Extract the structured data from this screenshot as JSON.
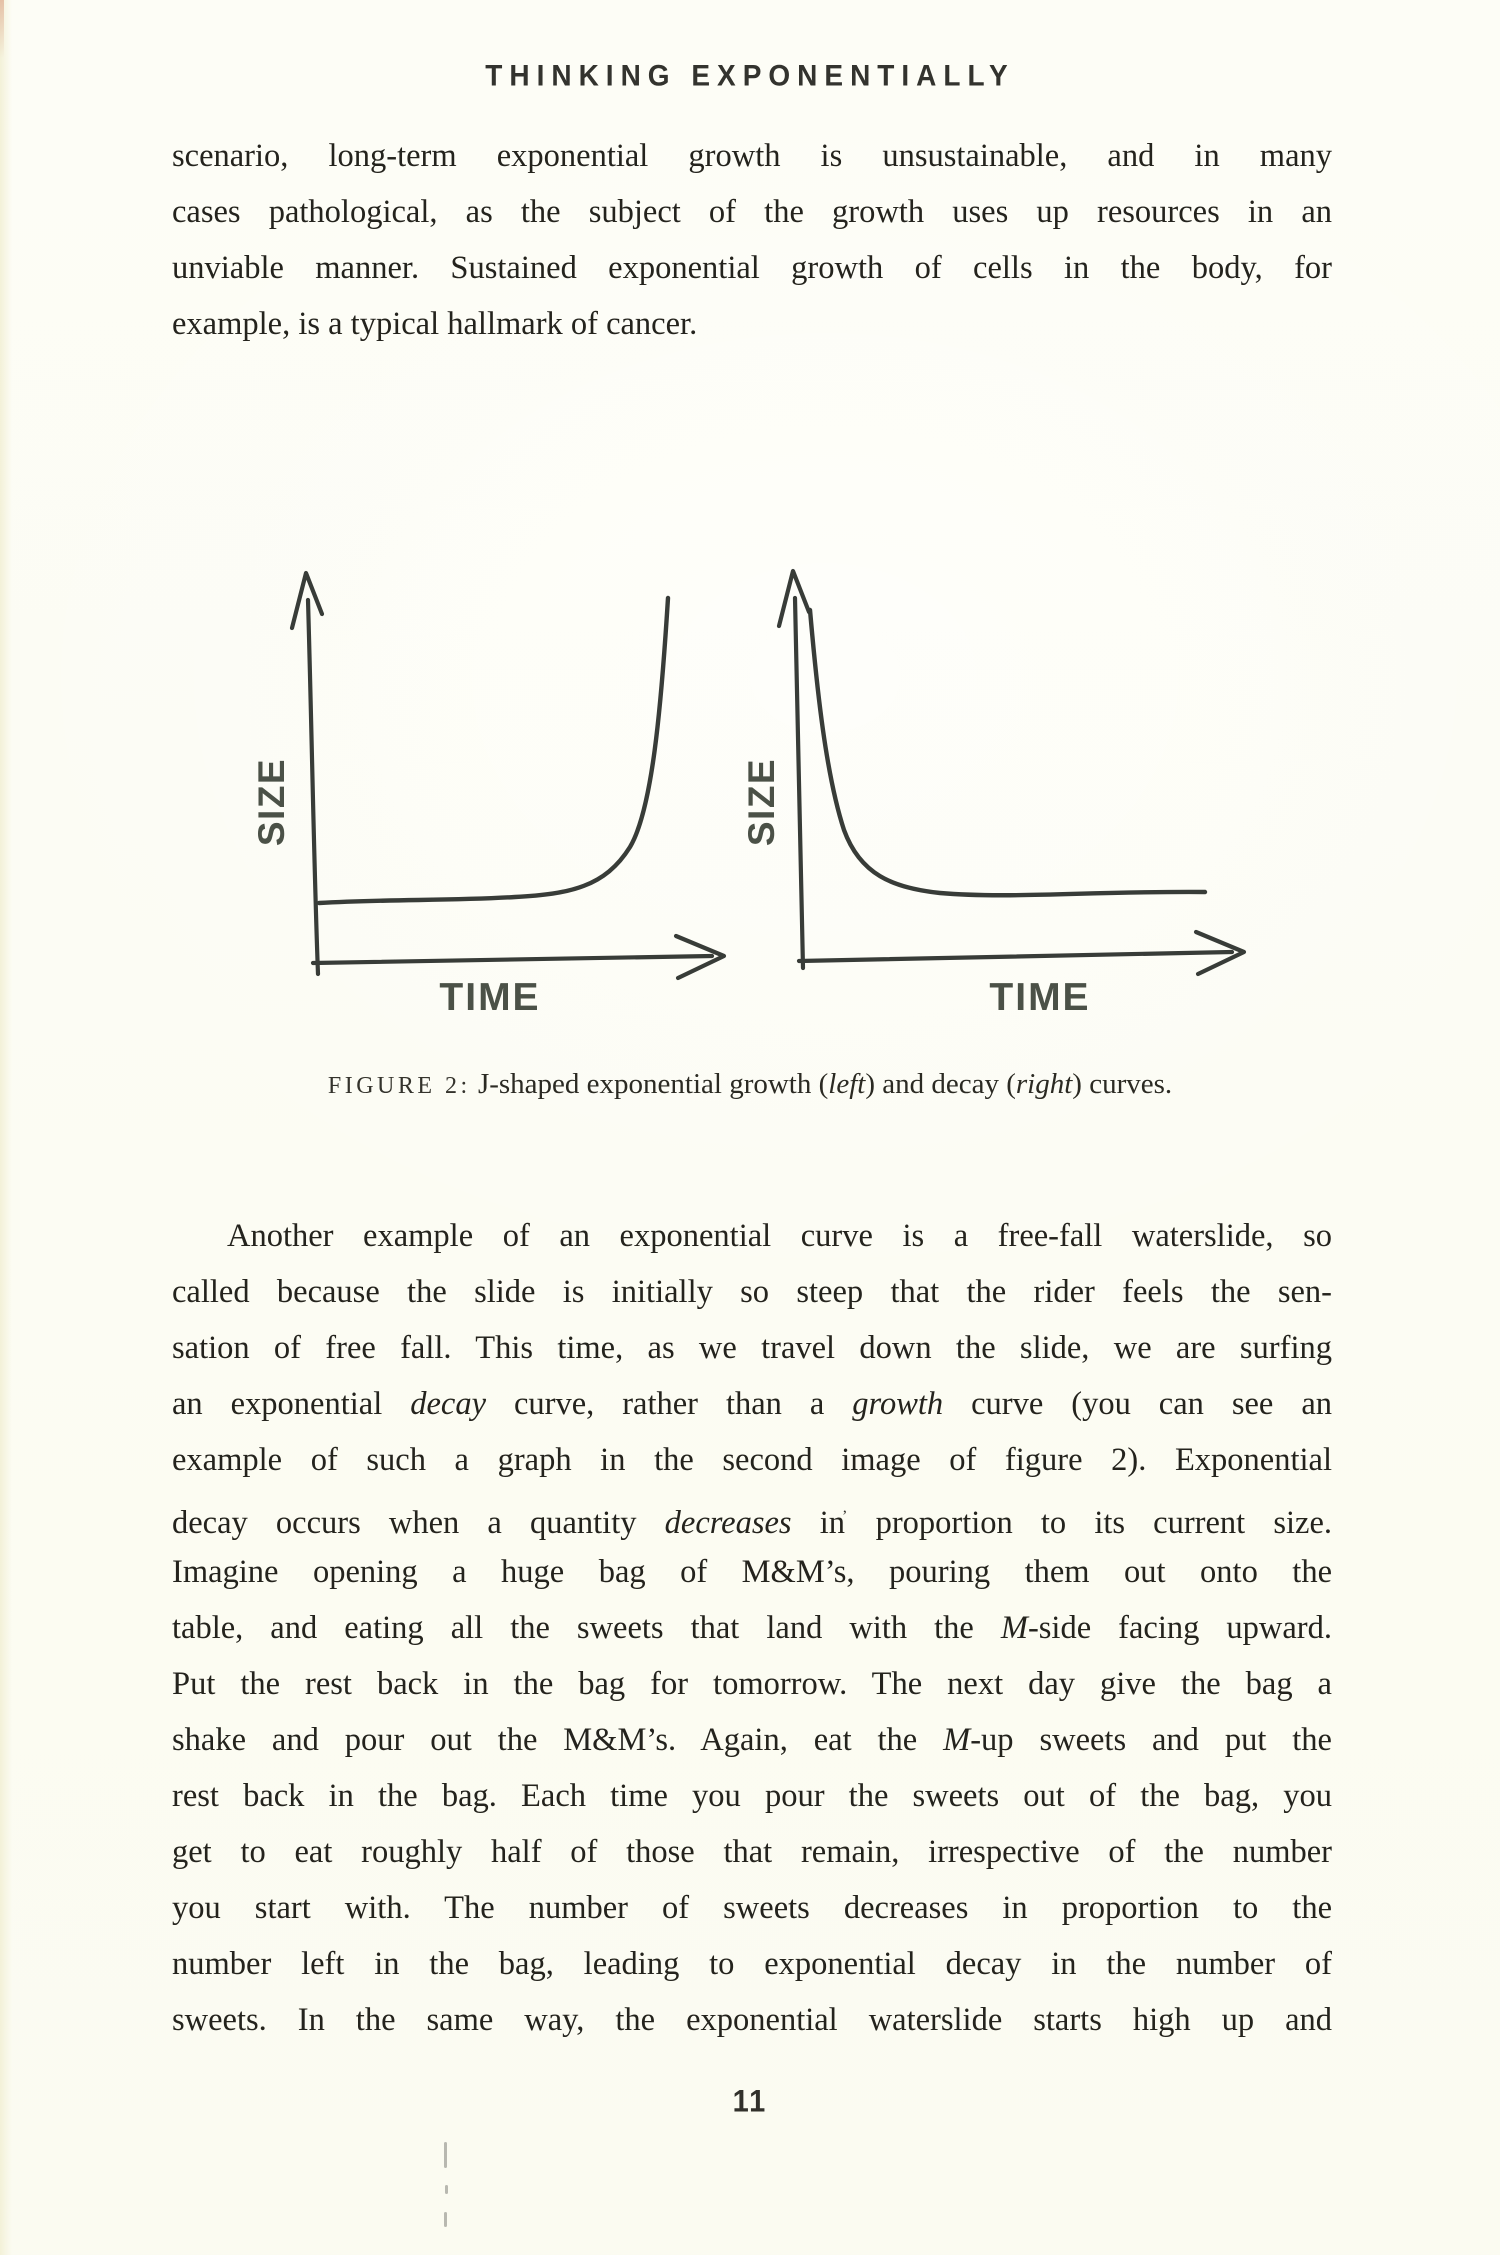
{
  "header": {
    "title": "THINKING EXPONENTIALLY"
  },
  "paragraph1": {
    "lines": [
      {
        "text": "scenario, long-term exponential growth is unsustainable, and in many",
        "justify": true
      },
      {
        "text": "cases pathological, as the subject of the growth uses up resources in an",
        "justify": true
      },
      {
        "text": "unviable manner. Sustained exponential growth of cells in the body, for",
        "justify": true
      },
      {
        "text": "example, is a typical hallmark of cancer.",
        "justify": false
      }
    ]
  },
  "figure": {
    "caption_label": "FIGURE 2:",
    "caption_text": "J-shaped exponential growth (<i>left</i>) and decay (<i>right</i>) curves.",
    "style": "hand-drawn line sketch, no ticks, no gridlines",
    "ink_color": "#383c38",
    "label_color": "#4b5147",
    "plots": [
      {
        "side": "left",
        "curve": "exponential growth (J-shaped: flat low start, sharp upturn)",
        "xlabel": "TIME",
        "ylabel": "SIZE"
      },
      {
        "side": "right",
        "curve": "exponential decay (steep fall from high start, flattens low)",
        "xlabel": "TIME",
        "ylabel": "SIZE"
      }
    ]
  },
  "paragraph2": {
    "lines": [
      {
        "text": "Another example of an exponential curve is a free-fall waterslide, so",
        "justify": true,
        "indent": 55
      },
      {
        "text": "called because the slide is initially so steep that the rider feels the sen-",
        "justify": true
      },
      {
        "text": "sation of free fall. This time, as we travel down the slide, we are surfing",
        "justify": true
      },
      {
        "text": "an exponential <i>decay</i> curve, rather than a <i>growth</i> curve (you can see an",
        "justify": true
      },
      {
        "text": "example of such a graph in the second image of figure 2). Exponential",
        "justify": true
      },
      {
        "text": "decay occurs when a quantity <i>decreases</i> in<span class='speck'>’</span> proportion to its current size.",
        "justify": true
      },
      {
        "text": "Imagine opening a huge bag of M&amp;M’s, pouring them out onto the",
        "justify": true
      },
      {
        "text": "table, and eating all the sweets that land with the <i>M</i>-side facing upward.",
        "justify": true
      },
      {
        "text": "Put the rest back in the bag for tomorrow. The next day give the bag a",
        "justify": true
      },
      {
        "text": "shake and pour out the M&amp;M’s. Again, eat the <i>M</i>-up sweets and put the",
        "justify": true
      },
      {
        "text": "rest back in the bag. Each time you pour the sweets out of the bag, you",
        "justify": true
      },
      {
        "text": "get to eat roughly half of those that remain, irrespective of the number",
        "justify": true
      },
      {
        "text": "you start with. The number of sweets decreases in proportion to the",
        "justify": true
      },
      {
        "text": "number left in the bag, leading to exponential decay in the number of",
        "justify": true
      },
      {
        "text": "sweets. In the same way, the exponential waterslide starts high up and",
        "justify": true
      }
    ]
  },
  "footer": {
    "page_number": "11"
  },
  "colors": {
    "paper": "#fcfcf4",
    "ink": "#24231d",
    "figure_ink": "#383c38",
    "figure_label": "#4b5147"
  }
}
